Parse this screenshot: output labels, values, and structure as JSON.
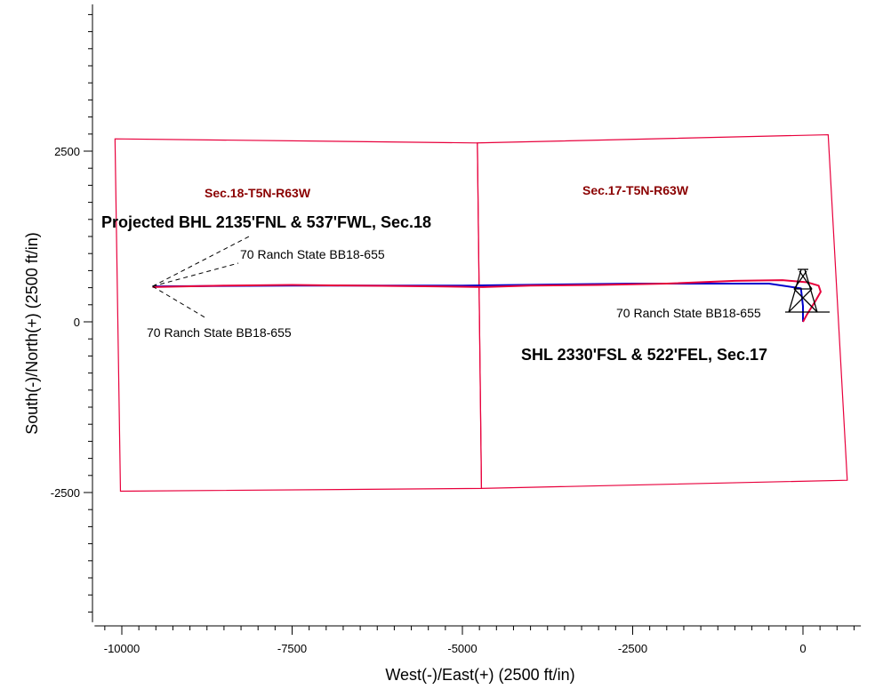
{
  "chart_data": {
    "type": "line",
    "title": "",
    "xlabel": "West(-)/East(+) (2500 ft/in)",
    "ylabel": "South(-)/North(+) (2500 ft/in)",
    "xlim": [
      -10400,
      850
    ],
    "ylim": [
      -4400,
      4650
    ],
    "x_major_ticks": [
      -10000,
      -7500,
      -5000,
      -2500,
      0
    ],
    "y_major_ticks": [
      -2500,
      0,
      2500
    ],
    "minor_tick_step": 250,
    "grid": false,
    "legend": "none",
    "section_lines": [
      {
        "name": "sec-18",
        "points": [
          [
            -10100,
            2680
          ],
          [
            -4780,
            2620
          ],
          [
            -4720,
            -2440
          ],
          [
            -10020,
            -2480
          ]
        ]
      },
      {
        "name": "sec-17",
        "points": [
          [
            -4780,
            2620
          ],
          [
            370,
            2740
          ],
          [
            650,
            -2320
          ],
          [
            -4720,
            -2440
          ]
        ]
      }
    ],
    "series": [
      {
        "color": "#0000cc",
        "values": [
          [
            0,
            0
          ],
          [
            0,
            230
          ],
          [
            -30,
            490
          ],
          [
            -500,
            560
          ],
          [
            -2500,
            560
          ],
          [
            -5000,
            530
          ],
          [
            -7500,
            530
          ],
          [
            -9550,
            520
          ]
        ]
      },
      {
        "color": "#e8003c",
        "values": [
          [
            0,
            0
          ],
          [
            60,
            110
          ],
          [
            180,
            300
          ],
          [
            260,
            440
          ],
          [
            230,
            530
          ],
          [
            60,
            580
          ],
          [
            -300,
            610
          ],
          [
            -1000,
            600
          ],
          [
            -2000,
            560
          ],
          [
            -3000,
            540
          ],
          [
            -4000,
            530
          ],
          [
            -4700,
            510
          ],
          [
            -5400,
            520
          ],
          [
            -6500,
            530
          ],
          [
            -7500,
            540
          ],
          [
            -8500,
            530
          ],
          [
            -9550,
            510
          ]
        ]
      }
    ],
    "section_labels": [
      "Sec.18-T5N-R63W",
      "Sec.17-T5N-R63W"
    ],
    "annotations": {
      "bhl": "Projected BHL 2135'FNL & 537'FWL, Sec.18",
      "shl": "SHL 2330'FSL & 522'FEL, Sec.17",
      "well_name_1": "70 Ranch State BB18-655",
      "well_name_2": "70 Ranch State BB18-655",
      "well_name_3": "70 Ranch State BB18-655"
    },
    "label_color": "#8b0000",
    "line_color": "#e8003c"
  }
}
